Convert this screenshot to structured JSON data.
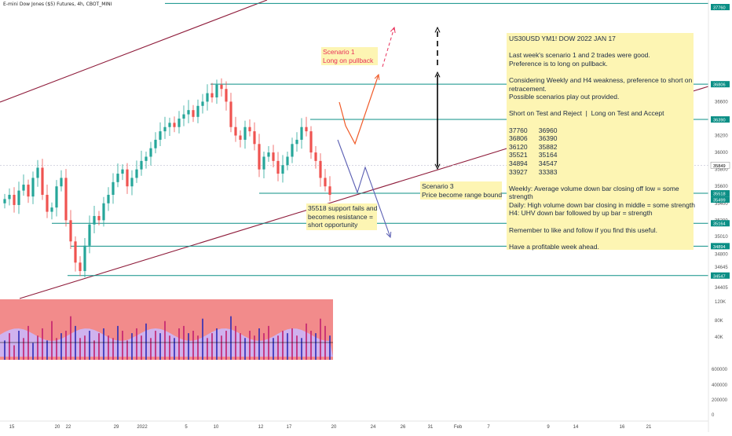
{
  "header": {
    "title": "E-mini Dow Jones ($5) Futures, 4h, CBOT_MINI"
  },
  "colors": {
    "up_candle": "#26a69a",
    "down_candle": "#ef5350",
    "hline": "#0b8f86",
    "channel": "#8e1b3a",
    "volume_bg": "#f28b8b",
    "volume_band": "#c9b8ff",
    "note_bg": "#fdf5b3",
    "scenario1": "#f05a28",
    "scenario2": "#e8305a",
    "scenario3": "#5b5fb3",
    "current_price_tag": "#ffffff"
  },
  "price_axis": {
    "labels": [
      "36800",
      "36600",
      "36400",
      "36200",
      "36000",
      "35800",
      "35600",
      "35400",
      "35200",
      "35010",
      "34800",
      "34645",
      "34405"
    ],
    "tags": [
      "36806",
      "36390",
      "35849",
      "35518",
      "35499",
      "35164",
      "34894",
      "34547"
    ],
    "top_tag": "37760"
  },
  "volume_axis": {
    "labels": [
      "120K",
      "80K",
      "40K"
    ]
  },
  "lower_axis": {
    "labels": [
      "600000",
      "400000",
      "200000",
      "0"
    ]
  },
  "time_axis": {
    "labels": [
      "15",
      "20",
      "22",
      "29",
      "2022",
      "5",
      "10",
      "12",
      "17",
      "20",
      "24",
      "26",
      "31",
      "Feb",
      "7",
      "9",
      "14",
      "16",
      "21"
    ]
  },
  "notes": {
    "main": [
      "US30USD YM1! DOW 2022 JAN 17",
      "",
      "Last week's scenario 1 and 2 trades were good.",
      "Preference is to long on pullback.",
      "",
      "Considering Weekly and H4 weakness, preference to short on",
      "retracement.",
      "Possible scenarios play out provided.",
      "",
      "Short on Test and Reject  |  Long on Test and Accept",
      "",
      "37760      36960",
      "36806      36390",
      "36120      35882",
      "35521      35164",
      "34894      34547",
      "33927      33383",
      "",
      "Weekly: Average volume down bar closing off low = some",
      "strength",
      "Daily: High volume down bar closing in middle = some strength",
      "H4: UHV down bar followed by up bar = strength",
      "",
      "Remember to like and follow if you find this useful.",
      "",
      "Have a profitable week ahead."
    ],
    "scenario1": [
      "Scenario 1",
      "Long on pullback"
    ],
    "scenario2": [
      "35518 support fails and",
      "becomes resistance =",
      "short opportunity"
    ],
    "scenario3": [
      "Scenario 3",
      "Price become range bound"
    ]
  },
  "chart_data": {
    "type": "candlestick",
    "title": "E-mini Dow Jones ($5) Futures, 4h, CBOT_MINI",
    "xlabel": "",
    "ylabel": "",
    "ylim": [
      34350,
      37800
    ],
    "horizontal_levels": [
      37760,
      36806,
      36390,
      35518,
      35164,
      34894,
      34547
    ],
    "current_price": 35849,
    "x_ticks": [
      "15",
      "20",
      "22",
      "29",
      "2022",
      "5",
      "10",
      "12",
      "17",
      "20",
      "24",
      "26",
      "31",
      "Feb",
      "7",
      "9",
      "14",
      "16",
      "21"
    ],
    "series": [
      {
        "name": "price",
        "close": [
          35450,
          35500,
          35380,
          35550,
          35620,
          35480,
          35700,
          35820,
          35500,
          35300,
          35350,
          35600,
          35700,
          35200,
          34950,
          34700,
          34600,
          34900,
          35150,
          35250,
          35200,
          35400,
          35500,
          35650,
          35750,
          35800,
          35600,
          35700,
          35800,
          35900,
          35950,
          36050,
          36150,
          36250,
          36300,
          36350,
          36300,
          36400,
          36450,
          36500,
          36420,
          36550,
          36600,
          36700,
          36650,
          36800,
          36750,
          36600,
          36300,
          36200,
          36150,
          36300,
          36250,
          36100,
          35800,
          35950,
          36000,
          35900,
          35750,
          35850,
          35950,
          36100,
          36150,
          36300,
          36250,
          36000,
          35900,
          35700,
          35600,
          35500
        ]
      },
      {
        "name": "volume",
        "values": [
          40,
          55,
          30,
          60,
          45,
          70,
          35,
          50,
          65,
          40,
          80,
          45,
          55,
          60,
          90,
          70,
          45,
          50,
          60,
          40,
          55,
          65,
          50,
          45,
          70,
          60,
          40,
          55,
          65,
          50,
          75,
          45,
          60,
          55,
          80,
          50,
          45,
          65,
          70,
          55,
          60,
          50,
          85,
          45,
          55,
          65,
          50,
          60,
          90,
          70,
          55,
          45,
          60,
          50,
          65,
          55,
          70,
          45,
          50,
          60,
          55,
          65,
          50,
          45,
          75,
          60,
          55,
          85,
          70,
          50
        ]
      }
    ],
    "volume_ylim": [
      0,
      125000
    ]
  }
}
